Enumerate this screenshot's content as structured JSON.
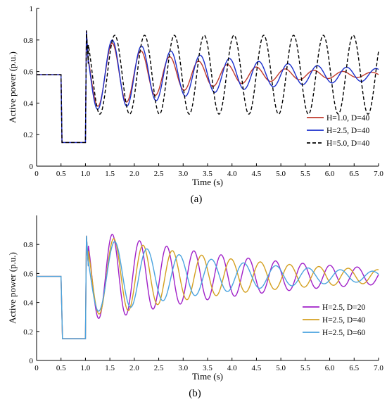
{
  "figure": {
    "panel_labels": [
      "(a)",
      "(b)"
    ]
  },
  "chart_data": [
    {
      "type": "line",
      "panel": "a",
      "xlabel": "Time (s)",
      "ylabel": "Active power (p.u.)",
      "xlim": [
        0,
        7
      ],
      "ylim": [
        0,
        1
      ],
      "xticks": [
        "0",
        "0.5",
        "1.0",
        "1.5",
        "2.0",
        "2.5",
        "3.0",
        "3.5",
        "4.0",
        "4.5",
        "5.0",
        "5.5",
        "6.0",
        "6.5",
        "7.0"
      ],
      "yticks": [
        "0",
        "0.2",
        "0.4",
        "0.6",
        "0.8",
        "1"
      ],
      "legend_position": "bottom-right",
      "pre_disturbance": {
        "t": [
          0,
          0.5,
          0.52,
          1.0,
          1.02,
          1.06
        ],
        "p": [
          0.58,
          0.58,
          0.15,
          0.15,
          0.86,
          0.65
        ]
      },
      "series": [
        {
          "name": "H=1.0, D=40",
          "color": "#c0392b",
          "dash": "solid",
          "params": {
            "H": 1.0,
            "D": 40
          },
          "steady": 0.58,
          "amp": 0.2,
          "period": 0.59,
          "decay": 0.48,
          "peak_time": 1.55
        },
        {
          "name": "H=2.5, D=40",
          "color": "#1a2ecc",
          "dash": "solid",
          "params": {
            "H": 2.5,
            "D": 40
          },
          "steady": 0.58,
          "amp": 0.22,
          "period": 0.6,
          "decay": 0.32,
          "peak_time": 1.55
        },
        {
          "name": "H=5.0, D=40",
          "color": "#000000",
          "dash": "dashed",
          "params": {
            "H": 5.0,
            "D": 40
          },
          "steady": 0.58,
          "amp": 0.25,
          "period": 0.61,
          "decay": 0.0,
          "peak_time": 1.6
        }
      ]
    },
    {
      "type": "line",
      "panel": "b",
      "xlabel": "Time (s)",
      "ylabel": "Active power (p.u.)",
      "xlim": [
        0,
        7
      ],
      "ylim": [
        0,
        1
      ],
      "xticks": [
        "0",
        "0.5",
        "1.0",
        "1.5",
        "2.0",
        "2.5",
        "3.0",
        "3.5",
        "4.0",
        "4.5",
        "5.0",
        "5.5",
        "6.0",
        "6.5",
        "7.0"
      ],
      "yticks": [
        "0",
        "0.2",
        "0.4",
        "0.6",
        "0.8"
      ],
      "legend_position": "bottom-right",
      "pre_disturbance": {
        "t": [
          0,
          0.5,
          0.53,
          1.0,
          1.02,
          1.06
        ],
        "p": [
          0.58,
          0.58,
          0.15,
          0.15,
          0.86,
          0.65
        ]
      },
      "series": [
        {
          "name": "H=2.5, D=20",
          "color": "#a020c8",
          "dash": "solid",
          "params": {
            "H": 2.5,
            "D": 20
          },
          "steady": 0.58,
          "amp": 0.29,
          "period": 0.557,
          "decay": 0.3,
          "peak_time": 1.55
        },
        {
          "name": "H=2.5, D=40",
          "color": "#d4a020",
          "dash": "solid",
          "params": {
            "H": 2.5,
            "D": 40
          },
          "steady": 0.58,
          "amp": 0.26,
          "period": 0.6,
          "decay": 0.32,
          "peak_time": 1.58
        },
        {
          "name": "H=2.5, D=60",
          "color": "#4aa3df",
          "dash": "solid",
          "params": {
            "H": 2.5,
            "D": 60
          },
          "steady": 0.58,
          "amp": 0.24,
          "period": 0.66,
          "decay": 0.36,
          "peak_time": 1.6
        }
      ]
    }
  ]
}
